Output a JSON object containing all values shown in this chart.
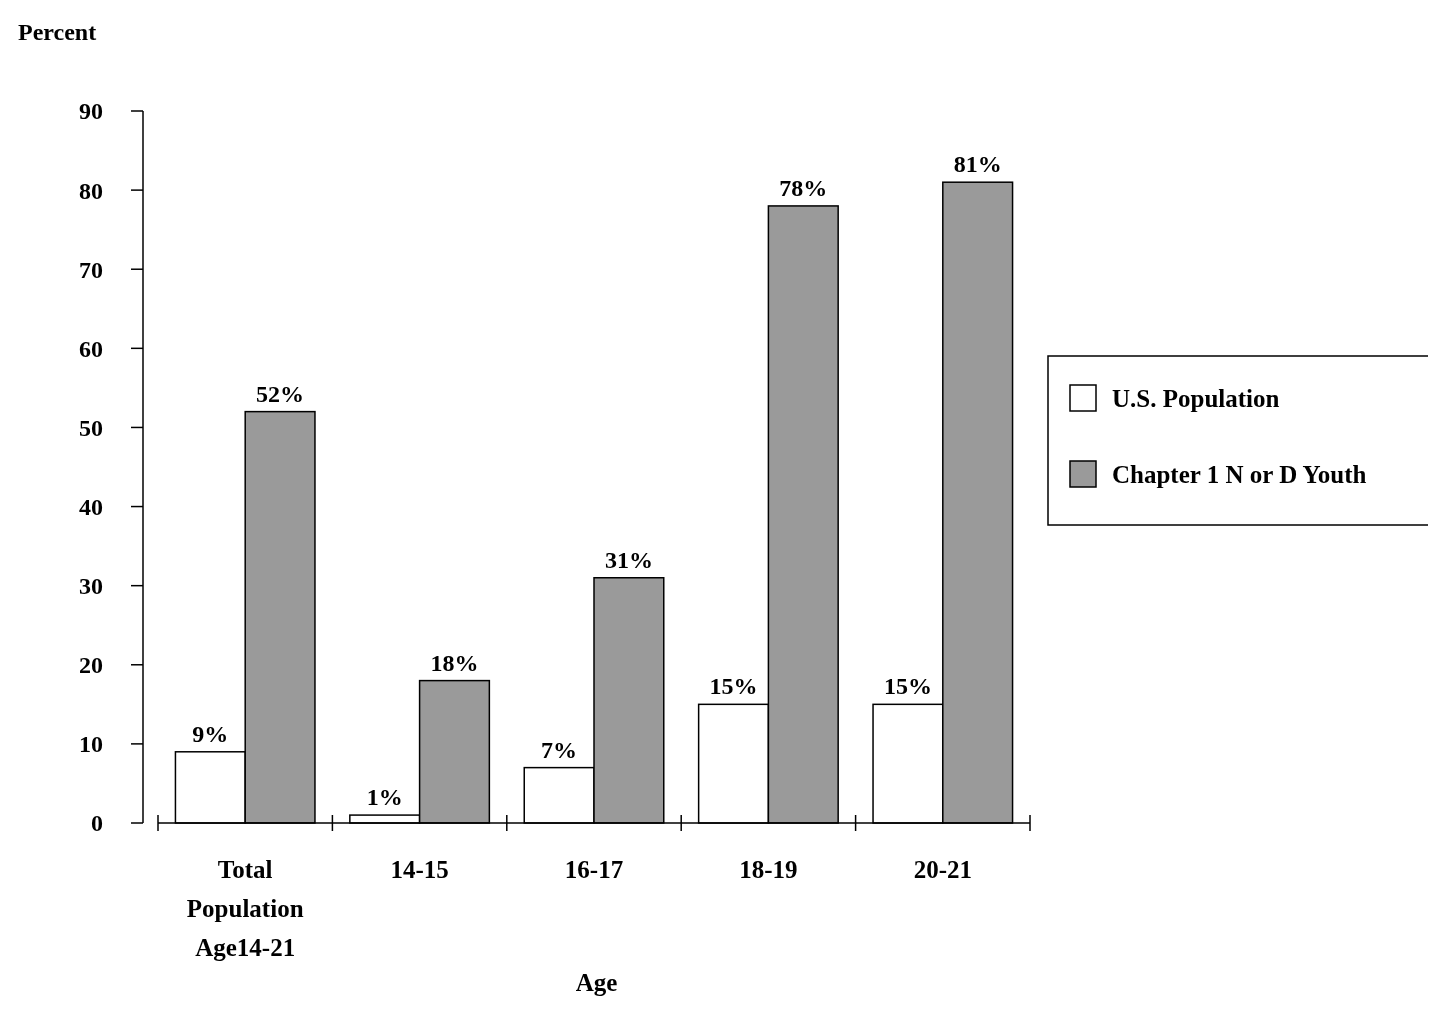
{
  "chart_data": {
    "type": "bar",
    "xlabel": "Age",
    "ylabel": "Percent",
    "categories": [
      "Total Population Age14-21",
      "14-15",
      "16-17",
      "18-19",
      "20-21"
    ],
    "series": [
      {
        "name": "U.S. Population",
        "color": "#ffffff",
        "values": [
          9,
          1,
          7,
          15,
          15
        ],
        "value_labels": [
          "9%",
          "1%",
          "7%",
          "15%",
          "15%"
        ]
      },
      {
        "name": "Chapter 1 N or D Youth",
        "color": "#9a9a9a",
        "values": [
          52,
          18,
          31,
          78,
          81
        ],
        "value_labels": [
          "52%",
          "18%",
          "31%",
          "78%",
          "81%"
        ]
      }
    ],
    "ylim": [
      0,
      90
    ],
    "yticks": [
      0,
      10,
      20,
      30,
      40,
      50,
      60,
      70,
      80,
      90
    ],
    "grid": false,
    "legend": "right"
  }
}
